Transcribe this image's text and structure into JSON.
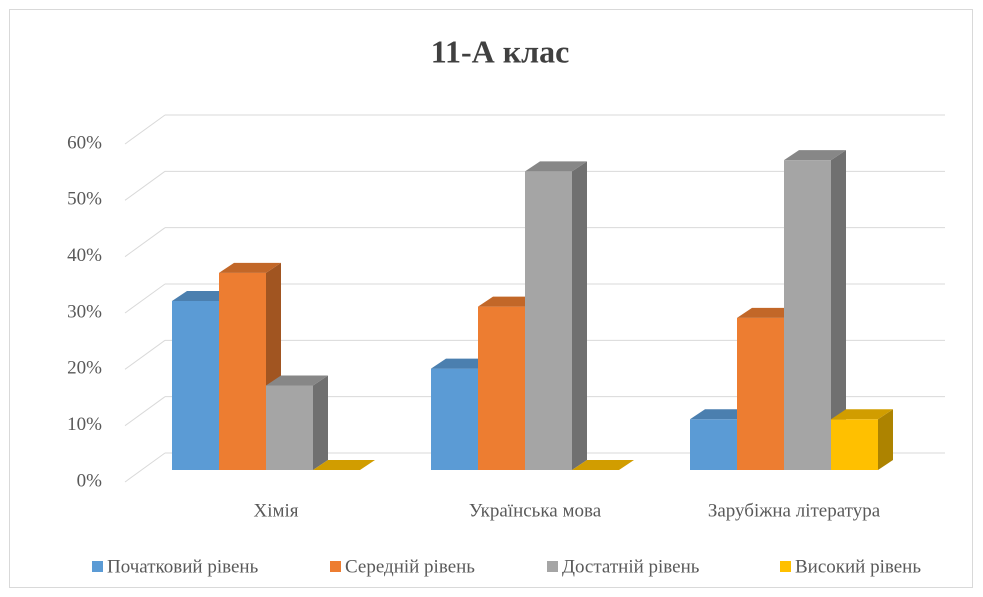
{
  "chart_data": {
    "type": "bar3d",
    "title": "11-А клас",
    "categories": [
      "Хімія",
      "Українська мова",
      "Зарубіжна література"
    ],
    "series": [
      {
        "name": "Початковий рівень",
        "color": "#5b9bd5",
        "values": [
          30,
          18,
          9
        ]
      },
      {
        "name": "Середній рівень",
        "color": "#ed7d31",
        "values": [
          35,
          29,
          27
        ]
      },
      {
        "name": "Достатній рівень",
        "color": "#a5a5a5",
        "values": [
          15,
          53,
          55
        ]
      },
      {
        "name": "Високий рівень",
        "color": "#ffc000",
        "values": [
          0,
          0,
          9
        ]
      }
    ],
    "ylim": [
      0,
      60
    ],
    "yticks": [
      {
        "value": 0,
        "label": "0%"
      },
      {
        "value": 10,
        "label": "10%"
      },
      {
        "value": 20,
        "label": "20%"
      },
      {
        "value": 30,
        "label": "30%"
      },
      {
        "value": 40,
        "label": "40%"
      },
      {
        "value": 50,
        "label": "50%"
      },
      {
        "value": 60,
        "label": "60%"
      }
    ],
    "grid": true,
    "legend": "bottom"
  }
}
